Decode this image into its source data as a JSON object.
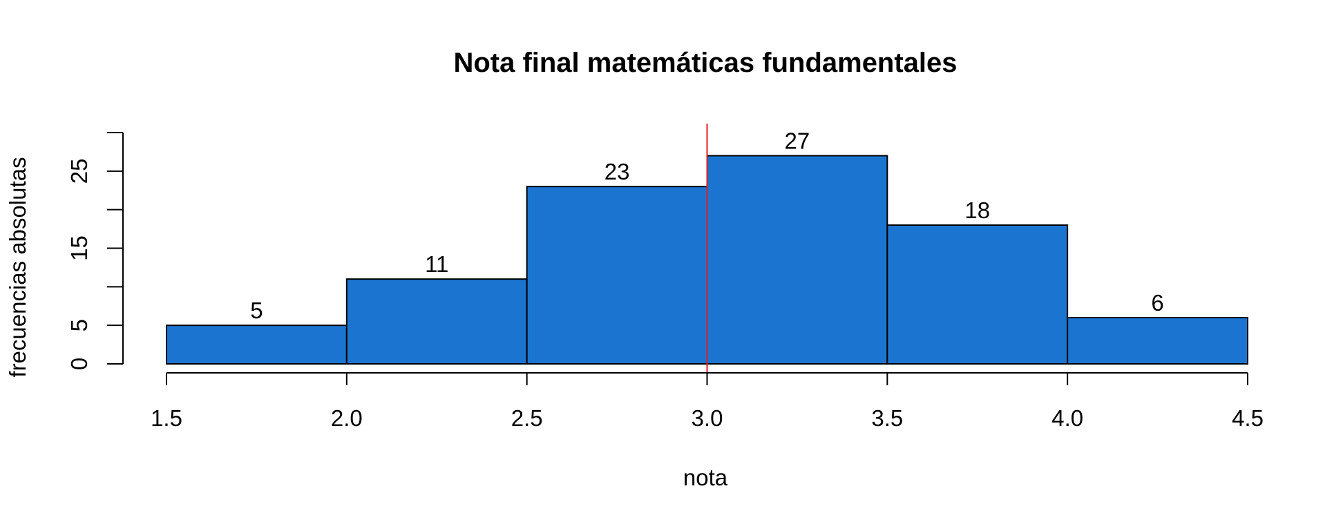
{
  "chart_data": {
    "type": "bar",
    "title": "Nota final matemáticas fundamentales",
    "xlabel": "nota",
    "ylabel": "frecuencias absolutas",
    "bins": [
      {
        "start": 1.5,
        "end": 2.0,
        "value": 5,
        "label": "5"
      },
      {
        "start": 2.0,
        "end": 2.5,
        "value": 11,
        "label": "11"
      },
      {
        "start": 2.5,
        "end": 3.0,
        "value": 23,
        "label": "23"
      },
      {
        "start": 3.0,
        "end": 3.5,
        "value": 27,
        "label": "27"
      },
      {
        "start": 3.5,
        "end": 4.0,
        "value": 18,
        "label": "18"
      },
      {
        "start": 4.0,
        "end": 4.5,
        "value": 6,
        "label": "6"
      }
    ],
    "xlim": [
      1.5,
      4.5
    ],
    "ylim": [
      0,
      30
    ],
    "x_ticks": [
      {
        "value": 1.5,
        "label": "1.5"
      },
      {
        "value": 2.0,
        "label": "2.0"
      },
      {
        "value": 2.5,
        "label": "2.5"
      },
      {
        "value": 3.0,
        "label": "3.0"
      },
      {
        "value": 3.5,
        "label": "3.5"
      },
      {
        "value": 4.0,
        "label": "4.0"
      },
      {
        "value": 4.5,
        "label": "4.5"
      }
    ],
    "y_ticks": [
      {
        "value": 0,
        "label": "0"
      },
      {
        "value": 5,
        "label": "5"
      },
      {
        "value": 10,
        "label": ""
      },
      {
        "value": 15,
        "label": "15"
      },
      {
        "value": 20,
        "label": ""
      },
      {
        "value": 25,
        "label": "25"
      },
      {
        "value": 30,
        "label": ""
      }
    ],
    "reference_line": {
      "x": 3.0,
      "color": "#e41a1c"
    },
    "bar_color": "#1b75d0",
    "grid": false,
    "legend": "none"
  }
}
